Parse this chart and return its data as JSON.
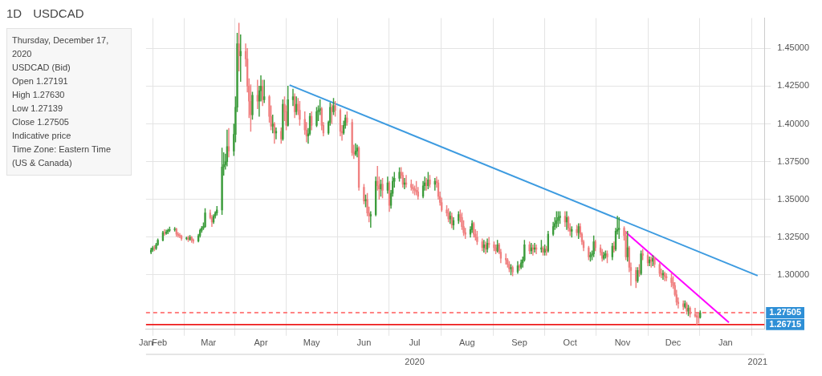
{
  "chart_data": {
    "type": "candlestick",
    "title": "USDCAD",
    "subtitle": "1D",
    "annotations": [
      "Thursday, December 17, 2020",
      "USDCAD (Bid)",
      "Open 1.27191",
      "High 1.27630",
      "Low 1.27139",
      "Close 1.27505",
      "Indicative price",
      "Time Zone: Eastern Time (US & Canada)"
    ],
    "xlim": [
      "2020-01-24",
      "2021-01-24"
    ],
    "xticks": [
      {
        "value": "2020-01-24",
        "label": "Jan"
      },
      {
        "value": "2020-02-01",
        "label": "Feb"
      },
      {
        "value": "2020-03-01",
        "label": "Mar"
      },
      {
        "value": "2020-04-01",
        "label": "Apr"
      },
      {
        "value": "2020-05-01",
        "label": "May"
      },
      {
        "value": "2020-06-01",
        "label": "Jun"
      },
      {
        "value": "2020-07-01",
        "label": "Jul"
      },
      {
        "value": "2020-08-01",
        "label": "Aug"
      },
      {
        "value": "2020-09-01",
        "label": "Sep"
      },
      {
        "value": "2020-10-01",
        "label": "Oct"
      },
      {
        "value": "2020-11-01",
        "label": "Nov"
      },
      {
        "value": "2020-12-01",
        "label": "Dec"
      },
      {
        "value": "2021-01-01",
        "label": "Jan"
      }
    ],
    "x2lim": [
      "2020-01-24",
      "2021-01-24"
    ],
    "x2ticks": [
      {
        "value": "2020-07-01",
        "label": "2020"
      },
      {
        "value": "2021-01-20",
        "label": "2021"
      }
    ],
    "ylim": [
      1.264,
      1.47
    ],
    "yticks": [
      {
        "value": 1.3,
        "label": "1.30000"
      },
      {
        "value": 1.325,
        "label": "1.32500"
      },
      {
        "value": 1.35,
        "label": "1.35000"
      },
      {
        "value": 1.375,
        "label": "1.37500"
      },
      {
        "value": 1.4,
        "label": "1.40000"
      },
      {
        "value": 1.425,
        "label": "1.42500"
      },
      {
        "value": 1.45,
        "label": "1.45000"
      }
    ],
    "grid": true,
    "ref_lines": [
      {
        "axis": "y",
        "value": 1.27505,
        "label": "1.27505",
        "color": "#ff5a5a",
        "line_style": "dashed"
      },
      {
        "axis": "y",
        "value": 1.26715,
        "label": "1.26715",
        "color": "#ee1c1c",
        "line_style": "solid"
      }
    ],
    "series": [
      {
        "x": [
          "2020-01-27",
          "2020-01-28",
          "2020-01-29",
          "2020-01-30",
          "2020-01-31",
          "2020-02-03",
          "2020-02-04",
          "2020-02-05",
          "2020-02-06",
          "2020-02-07",
          "2020-02-10",
          "2020-02-11",
          "2020-02-12",
          "2020-02-13",
          "2020-02-14",
          "2020-02-17",
          "2020-02-18",
          "2020-02-19",
          "2020-02-20",
          "2020-02-21",
          "2020-02-24",
          "2020-02-25",
          "2020-02-26",
          "2020-02-27",
          "2020-02-28",
          "2020-03-02",
          "2020-03-03",
          "2020-03-04",
          "2020-03-05",
          "2020-03-06",
          "2020-03-09",
          "2020-03-10",
          "2020-03-11",
          "2020-03-12",
          "2020-03-13",
          "2020-03-16",
          "2020-03-17",
          "2020-03-18",
          "2020-03-19",
          "2020-03-20",
          "2020-03-23",
          "2020-03-24",
          "2020-03-25",
          "2020-03-26",
          "2020-03-27",
          "2020-03-30",
          "2020-03-31",
          "2020-04-01",
          "2020-04-02",
          "2020-04-03",
          "2020-04-06",
          "2020-04-07",
          "2020-04-08",
          "2020-04-09",
          "2020-04-10",
          "2020-04-13",
          "2020-04-14",
          "2020-04-15",
          "2020-04-16",
          "2020-04-17",
          "2020-04-20",
          "2020-04-21",
          "2020-04-22",
          "2020-04-23",
          "2020-04-24",
          "2020-04-27",
          "2020-04-28",
          "2020-04-29",
          "2020-04-30",
          "2020-05-01",
          "2020-05-04",
          "2020-05-05",
          "2020-05-06",
          "2020-05-07",
          "2020-05-08",
          "2020-05-11",
          "2020-05-12",
          "2020-05-13",
          "2020-05-14",
          "2020-05-15",
          "2020-05-18",
          "2020-05-19",
          "2020-05-20",
          "2020-05-21",
          "2020-05-22",
          "2020-05-25",
          "2020-05-26",
          "2020-05-27",
          "2020-05-28",
          "2020-05-29",
          "2020-06-01",
          "2020-06-02",
          "2020-06-03",
          "2020-06-04",
          "2020-06-05",
          "2020-06-08",
          "2020-06-09",
          "2020-06-10",
          "2020-06-11",
          "2020-06-12",
          "2020-06-15",
          "2020-06-16",
          "2020-06-17",
          "2020-06-18",
          "2020-06-19",
          "2020-06-22",
          "2020-06-23",
          "2020-06-24",
          "2020-06-25",
          "2020-06-26",
          "2020-06-29",
          "2020-06-30",
          "2020-07-01",
          "2020-07-02",
          "2020-07-03",
          "2020-07-06",
          "2020-07-07",
          "2020-07-08",
          "2020-07-09",
          "2020-07-10",
          "2020-07-13",
          "2020-07-14",
          "2020-07-15",
          "2020-07-16",
          "2020-07-17",
          "2020-07-20",
          "2020-07-21",
          "2020-07-22",
          "2020-07-23",
          "2020-07-24",
          "2020-07-27",
          "2020-07-28",
          "2020-07-29",
          "2020-07-30",
          "2020-07-31",
          "2020-08-03",
          "2020-08-04",
          "2020-08-05",
          "2020-08-06",
          "2020-08-07",
          "2020-08-10",
          "2020-08-11",
          "2020-08-12",
          "2020-08-13",
          "2020-08-14",
          "2020-08-17",
          "2020-08-18",
          "2020-08-19",
          "2020-08-20",
          "2020-08-21",
          "2020-08-24",
          "2020-08-25",
          "2020-08-26",
          "2020-08-27",
          "2020-08-28",
          "2020-08-31",
          "2020-09-01",
          "2020-09-02",
          "2020-09-03",
          "2020-09-04",
          "2020-09-07",
          "2020-09-08",
          "2020-09-09",
          "2020-09-10",
          "2020-09-11",
          "2020-09-14",
          "2020-09-15",
          "2020-09-16",
          "2020-09-17",
          "2020-09-18",
          "2020-09-21",
          "2020-09-22",
          "2020-09-23",
          "2020-09-24",
          "2020-09-25",
          "2020-09-28",
          "2020-09-29",
          "2020-09-30",
          "2020-10-01",
          "2020-10-02",
          "2020-10-05",
          "2020-10-06",
          "2020-10-07",
          "2020-10-08",
          "2020-10-09",
          "2020-10-12",
          "2020-10-13",
          "2020-10-14",
          "2020-10-15",
          "2020-10-16",
          "2020-10-19",
          "2020-10-20",
          "2020-10-21",
          "2020-10-22",
          "2020-10-23",
          "2020-10-26",
          "2020-10-27",
          "2020-10-28",
          "2020-10-29",
          "2020-10-30",
          "2020-11-02",
          "2020-11-03",
          "2020-11-04",
          "2020-11-05",
          "2020-11-06",
          "2020-11-09",
          "2020-11-10",
          "2020-11-11",
          "2020-11-12",
          "2020-11-13",
          "2020-11-16",
          "2020-11-17",
          "2020-11-18",
          "2020-11-19",
          "2020-11-20",
          "2020-11-23",
          "2020-11-24",
          "2020-11-25",
          "2020-11-26",
          "2020-11-27",
          "2020-11-30",
          "2020-12-01",
          "2020-12-02",
          "2020-12-03",
          "2020-12-04",
          "2020-12-07",
          "2020-12-08",
          "2020-12-09",
          "2020-12-10",
          "2020-12-11",
          "2020-12-14",
          "2020-12-15",
          "2020-12-16",
          "2020-12-17"
        ],
        "ohlc": [
          [
            1.315,
            1.3178,
            1.314,
            1.3165
          ],
          [
            1.3165,
            1.319,
            1.3155,
            1.318
          ],
          [
            1.318,
            1.3195,
            1.316,
            1.3175
          ],
          [
            1.3175,
            1.321,
            1.3168,
            1.32
          ],
          [
            1.32,
            1.324,
            1.3195,
            1.323
          ],
          [
            1.323,
            1.329,
            1.3225,
            1.328
          ],
          [
            1.328,
            1.33,
            1.3262,
            1.3275
          ],
          [
            1.3275,
            1.3298,
            1.3268,
            1.3285
          ],
          [
            1.3285,
            1.3305,
            1.3272,
            1.3295
          ],
          [
            1.3295,
            1.3318,
            1.3285,
            1.33
          ],
          [
            1.33,
            1.3315,
            1.329,
            1.3305
          ],
          [
            1.3305,
            1.331,
            1.3255,
            1.327
          ],
          [
            1.327,
            1.3282,
            1.325,
            1.3262
          ],
          [
            1.3262,
            1.3275,
            1.3245,
            1.3258
          ],
          [
            1.3258,
            1.3265,
            1.3228,
            1.324
          ],
          [
            1.324,
            1.3252,
            1.3232,
            1.3245
          ],
          [
            1.3245,
            1.3258,
            1.322,
            1.3235
          ],
          [
            1.3235,
            1.3262,
            1.3228,
            1.325
          ],
          [
            1.325,
            1.3255,
            1.3215,
            1.323
          ],
          [
            1.323,
            1.324,
            1.321,
            1.3225
          ],
          [
            1.3225,
            1.327,
            1.3218,
            1.326
          ],
          [
            1.326,
            1.3305,
            1.325,
            1.3295
          ],
          [
            1.3295,
            1.3322,
            1.3282,
            1.331
          ],
          [
            1.331,
            1.3345,
            1.33,
            1.332
          ],
          [
            1.332,
            1.344,
            1.3315,
            1.341
          ],
          [
            1.341,
            1.343,
            1.337,
            1.338
          ],
          [
            1.338,
            1.3395,
            1.332,
            1.335
          ],
          [
            1.335,
            1.34,
            1.334,
            1.339
          ],
          [
            1.339,
            1.342,
            1.3375,
            1.341
          ],
          [
            1.341,
            1.3455,
            1.3395,
            1.343
          ],
          [
            1.343,
            1.384,
            1.34,
            1.3715
          ],
          [
            1.3715,
            1.381,
            1.366,
            1.373
          ],
          [
            1.373,
            1.38,
            1.37,
            1.375
          ],
          [
            1.375,
            1.396,
            1.372,
            1.385
          ],
          [
            1.385,
            1.397,
            1.378,
            1.382
          ],
          [
            1.382,
            1.4,
            1.379,
            1.393
          ],
          [
            1.393,
            1.418,
            1.388,
            1.411
          ],
          [
            1.411,
            1.46,
            1.408,
            1.453
          ],
          [
            1.453,
            1.4667,
            1.435,
            1.445
          ],
          [
            1.445,
            1.459,
            1.428,
            1.448
          ],
          [
            1.448,
            1.453,
            1.438,
            1.443
          ],
          [
            1.443,
            1.45,
            1.421,
            1.425
          ],
          [
            1.425,
            1.43,
            1.404,
            1.415
          ],
          [
            1.415,
            1.426,
            1.395,
            1.406
          ],
          [
            1.406,
            1.421,
            1.403,
            1.419
          ],
          [
            1.419,
            1.429,
            1.41,
            1.415
          ],
          [
            1.415,
            1.425,
            1.405,
            1.422
          ],
          [
            1.422,
            1.432,
            1.415,
            1.425
          ],
          [
            1.425,
            1.429,
            1.412,
            1.416
          ],
          [
            1.416,
            1.429,
            1.414,
            1.418
          ],
          [
            1.418,
            1.419,
            1.401,
            1.405
          ],
          [
            1.405,
            1.412,
            1.396,
            1.3985
          ],
          [
            1.3985,
            1.406,
            1.394,
            1.4
          ],
          [
            1.4,
            1.401,
            1.387,
            1.394
          ],
          [
            1.394,
            1.3975,
            1.39,
            1.395
          ],
          [
            1.395,
            1.3975,
            1.387,
            1.39
          ],
          [
            1.39,
            1.416,
            1.389,
            1.413
          ],
          [
            1.413,
            1.418,
            1.402,
            1.408
          ],
          [
            1.408,
            1.412,
            1.396,
            1.399
          ],
          [
            1.399,
            1.425,
            1.3985,
            1.416
          ],
          [
            1.416,
            1.423,
            1.412,
            1.418
          ],
          [
            1.418,
            1.42,
            1.404,
            1.408
          ],
          [
            1.408,
            1.418,
            1.406,
            1.413
          ],
          [
            1.413,
            1.417,
            1.406,
            1.409
          ],
          [
            1.409,
            1.415,
            1.399,
            1.403
          ],
          [
            1.403,
            1.408,
            1.393,
            1.396
          ],
          [
            1.396,
            1.401,
            1.388,
            1.392
          ],
          [
            1.392,
            1.397,
            1.387,
            1.3935
          ],
          [
            1.3935,
            1.407,
            1.3925,
            1.405
          ],
          [
            1.405,
            1.408,
            1.396,
            1.399
          ],
          [
            1.399,
            1.411,
            1.398,
            1.408
          ],
          [
            1.408,
            1.412,
            1.402,
            1.409
          ],
          [
            1.409,
            1.416,
            1.406,
            1.41
          ],
          [
            1.41,
            1.411,
            1.396,
            1.399
          ],
          [
            1.399,
            1.401,
            1.392,
            1.394
          ],
          [
            1.394,
            1.402,
            1.393,
            1.401
          ],
          [
            1.401,
            1.414,
            1.399,
            1.411
          ],
          [
            1.411,
            1.413,
            1.4,
            1.408
          ],
          [
            1.408,
            1.417,
            1.406,
            1.412
          ],
          [
            1.412,
            1.415,
            1.405,
            1.409
          ],
          [
            1.409,
            1.41,
            1.392,
            1.395
          ],
          [
            1.395,
            1.399,
            1.389,
            1.394
          ],
          [
            1.394,
            1.402,
            1.393,
            1.399
          ],
          [
            1.399,
            1.406,
            1.397,
            1.404
          ],
          [
            1.404,
            1.408,
            1.399,
            1.401
          ],
          [
            1.401,
            1.403,
            1.379,
            1.381
          ],
          [
            1.381,
            1.386,
            1.377,
            1.38
          ],
          [
            1.38,
            1.387,
            1.379,
            1.382
          ],
          [
            1.382,
            1.386,
            1.378,
            1.384
          ],
          [
            1.384,
            1.385,
            1.356,
            1.358
          ],
          [
            1.358,
            1.36,
            1.347,
            1.349
          ],
          [
            1.349,
            1.353,
            1.345,
            1.35
          ],
          [
            1.35,
            1.354,
            1.339,
            1.341
          ],
          [
            1.341,
            1.345,
            1.335,
            1.339
          ],
          [
            1.339,
            1.342,
            1.3315,
            1.34
          ],
          [
            1.34,
            1.365,
            1.339,
            1.362
          ],
          [
            1.362,
            1.372,
            1.356,
            1.359
          ],
          [
            1.359,
            1.365,
            1.35,
            1.357
          ],
          [
            1.357,
            1.363,
            1.352,
            1.36
          ],
          [
            1.36,
            1.364,
            1.351,
            1.356
          ],
          [
            1.356,
            1.365,
            1.354,
            1.361
          ],
          [
            1.361,
            1.362,
            1.342,
            1.346
          ],
          [
            1.346,
            1.356,
            1.344,
            1.354
          ],
          [
            1.354,
            1.365,
            1.352,
            1.362
          ],
          [
            1.362,
            1.368,
            1.358,
            1.364
          ],
          [
            1.364,
            1.371,
            1.362,
            1.368
          ],
          [
            1.368,
            1.3712,
            1.364,
            1.366
          ],
          [
            1.366,
            1.368,
            1.358,
            1.36
          ],
          [
            1.36,
            1.364,
            1.357,
            1.361
          ],
          [
            1.361,
            1.366,
            1.358,
            1.36
          ],
          [
            1.36,
            1.363,
            1.356,
            1.358
          ],
          [
            1.358,
            1.36,
            1.354,
            1.357
          ],
          [
            1.357,
            1.359,
            1.353,
            1.356
          ],
          [
            1.356,
            1.362,
            1.353,
            1.355
          ],
          [
            1.355,
            1.358,
            1.35,
            1.352
          ],
          [
            1.352,
            1.362,
            1.351,
            1.359
          ],
          [
            1.359,
            1.365,
            1.356,
            1.361
          ],
          [
            1.361,
            1.364,
            1.356,
            1.359
          ],
          [
            1.359,
            1.368,
            1.357,
            1.363
          ],
          [
            1.363,
            1.366,
            1.358,
            1.36
          ],
          [
            1.36,
            1.364,
            1.356,
            1.362
          ],
          [
            1.362,
            1.365,
            1.358,
            1.361
          ],
          [
            1.361,
            1.363,
            1.35,
            1.352
          ],
          [
            1.352,
            1.355,
            1.346,
            1.348
          ],
          [
            1.348,
            1.351,
            1.342,
            1.343
          ],
          [
            1.343,
            1.346,
            1.339,
            1.341
          ],
          [
            1.341,
            1.344,
            1.335,
            1.337
          ],
          [
            1.337,
            1.342,
            1.334,
            1.339
          ],
          [
            1.339,
            1.341,
            1.331,
            1.333
          ],
          [
            1.333,
            1.338,
            1.33,
            1.336
          ],
          [
            1.336,
            1.342,
            1.334,
            1.34
          ],
          [
            1.34,
            1.343,
            1.335,
            1.338
          ],
          [
            1.338,
            1.341,
            1.33,
            1.332
          ],
          [
            1.332,
            1.336,
            1.326,
            1.328
          ],
          [
            1.328,
            1.331,
            1.324,
            1.327
          ],
          [
            1.327,
            1.332,
            1.325,
            1.33
          ],
          [
            1.33,
            1.336,
            1.328,
            1.334
          ],
          [
            1.334,
            1.335,
            1.325,
            1.327
          ],
          [
            1.327,
            1.33,
            1.323,
            1.325
          ],
          [
            1.325,
            1.329,
            1.32,
            1.322
          ],
          [
            1.322,
            1.324,
            1.316,
            1.318
          ],
          [
            1.318,
            1.323,
            1.315,
            1.32
          ],
          [
            1.32,
            1.322,
            1.314,
            1.317
          ],
          [
            1.317,
            1.324,
            1.315,
            1.321
          ],
          [
            1.321,
            1.325,
            1.318,
            1.32
          ],
          [
            1.32,
            1.322,
            1.316,
            1.318
          ],
          [
            1.318,
            1.32,
            1.314,
            1.316
          ],
          [
            1.316,
            1.323,
            1.315,
            1.32
          ],
          [
            1.32,
            1.321,
            1.314,
            1.315
          ],
          [
            1.315,
            1.317,
            1.308,
            1.311
          ],
          [
            1.311,
            1.314,
            1.307,
            1.31
          ],
          [
            1.31,
            1.311,
            1.305,
            1.307
          ],
          [
            1.307,
            1.309,
            1.302,
            1.304
          ],
          [
            1.304,
            1.307,
            1.3,
            1.305
          ],
          [
            1.305,
            1.306,
            1.2993,
            1.302
          ],
          [
            1.302,
            1.309,
            1.301,
            1.306
          ],
          [
            1.306,
            1.307,
            1.303,
            1.305
          ],
          [
            1.305,
            1.31,
            1.304,
            1.308
          ],
          [
            1.308,
            1.312,
            1.305,
            1.31
          ],
          [
            1.31,
            1.323,
            1.309,
            1.32
          ],
          [
            1.32,
            1.322,
            1.314,
            1.316
          ],
          [
            1.316,
            1.321,
            1.314,
            1.318
          ],
          [
            1.318,
            1.32,
            1.313,
            1.317
          ],
          [
            1.317,
            1.321,
            1.315,
            1.318
          ],
          [
            1.318,
            1.32,
            1.314,
            1.317
          ],
          [
            1.317,
            1.323,
            1.315,
            1.318
          ],
          [
            1.318,
            1.319,
            1.313,
            1.315
          ],
          [
            1.315,
            1.32,
            1.313,
            1.317
          ],
          [
            1.317,
            1.319,
            1.313,
            1.316
          ],
          [
            1.316,
            1.329,
            1.315,
            1.327
          ],
          [
            1.327,
            1.335,
            1.326,
            1.332
          ],
          [
            1.332,
            1.338,
            1.33,
            1.334
          ],
          [
            1.334,
            1.342,
            1.331,
            1.336
          ],
          [
            1.336,
            1.342,
            1.332,
            1.338
          ],
          [
            1.338,
            1.342,
            1.334,
            1.339
          ],
          [
            1.339,
            1.342,
            1.332,
            1.335
          ],
          [
            1.335,
            1.342,
            1.33,
            1.338
          ],
          [
            1.338,
            1.339,
            1.329,
            1.331
          ],
          [
            1.331,
            1.334,
            1.326,
            1.329
          ],
          [
            1.329,
            1.332,
            1.325,
            1.33
          ],
          [
            1.33,
            1.333,
            1.326,
            1.328
          ],
          [
            1.328,
            1.334,
            1.324,
            1.332
          ],
          [
            1.332,
            1.334,
            1.325,
            1.327
          ],
          [
            1.327,
            1.328,
            1.32,
            1.322
          ],
          [
            1.322,
            1.323,
            1.316,
            1.318
          ],
          [
            1.318,
            1.319,
            1.31,
            1.312
          ],
          [
            1.312,
            1.315,
            1.309,
            1.313
          ],
          [
            1.313,
            1.316,
            1.31,
            1.314
          ],
          [
            1.314,
            1.326,
            1.312,
            1.322
          ],
          [
            1.322,
            1.323,
            1.316,
            1.318
          ],
          [
            1.318,
            1.32,
            1.313,
            1.315
          ],
          [
            1.315,
            1.317,
            1.309,
            1.311
          ],
          [
            1.311,
            1.315,
            1.31,
            1.313
          ],
          [
            1.313,
            1.316,
            1.311,
            1.314
          ],
          [
            1.314,
            1.316,
            1.308,
            1.312
          ],
          [
            1.312,
            1.321,
            1.31,
            1.319
          ],
          [
            1.319,
            1.322,
            1.315,
            1.317
          ],
          [
            1.317,
            1.331,
            1.316,
            1.329
          ],
          [
            1.329,
            1.339,
            1.327,
            1.33
          ],
          [
            1.33,
            1.338,
            1.324,
            1.331
          ],
          [
            1.331,
            1.332,
            1.323,
            1.326
          ],
          [
            1.326,
            1.329,
            1.31,
            1.312
          ],
          [
            1.312,
            1.329,
            1.309,
            1.318
          ],
          [
            1.318,
            1.319,
            1.302,
            1.305
          ],
          [
            1.305,
            1.308,
            1.293,
            1.303
          ],
          [
            1.303,
            1.305,
            1.2915,
            1.296
          ],
          [
            1.296,
            1.305,
            1.295,
            1.303
          ],
          [
            1.303,
            1.307,
            1.299,
            1.301
          ],
          [
            1.301,
            1.316,
            1.3,
            1.314
          ],
          [
            1.314,
            1.317,
            1.31,
            1.313
          ],
          [
            1.313,
            1.315,
            1.306,
            1.308
          ],
          [
            1.308,
            1.312,
            1.306,
            1.31
          ],
          [
            1.31,
            1.312,
            1.305,
            1.309
          ],
          [
            1.309,
            1.313,
            1.306,
            1.311
          ],
          [
            1.311,
            1.312,
            1.305,
            1.307
          ],
          [
            1.307,
            1.308,
            1.299,
            1.301
          ],
          [
            1.301,
            1.304,
            1.298,
            1.3
          ],
          [
            1.3,
            1.303,
            1.297,
            1.301
          ],
          [
            1.301,
            1.302,
            1.296,
            1.299
          ],
          [
            1.299,
            1.301,
            1.296,
            1.298
          ],
          [
            1.298,
            1.301,
            1.292,
            1.295
          ],
          [
            1.295,
            1.299,
            1.291,
            1.293
          ],
          [
            1.293,
            1.295,
            1.286,
            1.287
          ],
          [
            1.287,
            1.29,
            1.28,
            1.282
          ],
          [
            1.282,
            1.285,
            1.278,
            1.281
          ],
          [
            1.281,
            1.283,
            1.277,
            1.279
          ],
          [
            1.279,
            1.283,
            1.278,
            1.281
          ],
          [
            1.281,
            1.282,
            1.274,
            1.276
          ],
          [
            1.276,
            1.28,
            1.273,
            1.278
          ],
          [
            1.278,
            1.279,
            1.272,
            1.274
          ],
          [
            1.274,
            1.278,
            1.272,
            1.273
          ],
          [
            1.273,
            1.275,
            1.26715,
            1.272
          ],
          [
            1.272,
            1.275,
            1.268,
            1.2719
          ],
          [
            1.27191,
            1.2763,
            1.27139,
            1.27505
          ]
        ],
        "colors": [
          "#3c9c3c",
          "#3c9c3c",
          "#f08080",
          "#3c9c3c",
          "#3c9c3c",
          "#3c9c3c",
          "#f08080",
          "#3c9c3c",
          "#3c9c3c",
          "#3c9c3c",
          "#3c9c3c",
          "#f08080",
          "#f08080",
          "#f08080",
          "#f08080",
          "#3c9c3c",
          "#f08080",
          "#3c9c3c",
          "#f08080",
          "#f08080",
          "#3c9c3c",
          "#3c9c3c",
          "#3c9c3c",
          "#3c9c3c",
          "#3c9c3c",
          "#f08080",
          "#f08080",
          "#3c9c3c",
          "#3c9c3c",
          "#3c9c3c",
          "#3c9c3c",
          "#3c9c3c",
          "#3c9c3c",
          "#3c9c3c",
          "#f08080",
          "#3c9c3c",
          "#3c9c3c",
          "#3c9c3c",
          "#f08080",
          "#3c9c3c",
          "#f08080",
          "#f08080",
          "#f08080",
          "#f08080",
          "#3c9c3c",
          "#f08080",
          "#3c9c3c",
          "#3c9c3c",
          "#f08080",
          "#3c9c3c",
          "#f08080",
          "#f08080",
          "#3c9c3c",
          "#f08080",
          "#3c9c3c",
          "#f08080",
          "#3c9c3c",
          "#f08080",
          "#f08080",
          "#3c9c3c",
          "#3c9c3c",
          "#f08080",
          "#3c9c3c",
          "#f08080",
          "#f08080",
          "#f08080",
          "#f08080",
          "#3c9c3c",
          "#3c9c3c",
          "#f08080",
          "#3c9c3c",
          "#3c9c3c",
          "#3c9c3c",
          "#f08080",
          "#f08080",
          "#3c9c3c",
          "#3c9c3c",
          "#f08080",
          "#3c9c3c",
          "#f08080",
          "#f08080",
          "#f08080",
          "#3c9c3c",
          "#3c9c3c",
          "#f08080",
          "#f08080",
          "#f08080",
          "#3c9c3c",
          "#3c9c3c",
          "#f08080",
          "#f08080",
          "#3c9c3c",
          "#f08080",
          "#f08080",
          "#3c9c3c",
          "#3c9c3c",
          "#f08080",
          "#f08080",
          "#3c9c3c",
          "#f08080",
          "#3c9c3c",
          "#f08080",
          "#3c9c3c",
          "#3c9c3c",
          "#3c9c3c",
          "#3c9c3c",
          "#f08080",
          "#f08080",
          "#3c9c3c",
          "#f08080",
          "#f08080",
          "#f08080",
          "#f08080",
          "#f08080",
          "#f08080",
          "#3c9c3c",
          "#3c9c3c",
          "#f08080",
          "#3c9c3c",
          "#f08080",
          "#3c9c3c",
          "#f08080",
          "#f08080",
          "#f08080",
          "#f08080",
          "#f08080",
          "#f08080",
          "#3c9c3c",
          "#f08080",
          "#3c9c3c",
          "#3c9c3c",
          "#f08080",
          "#f08080",
          "#f08080",
          "#f08080",
          "#3c9c3c",
          "#3c9c3c",
          "#f08080",
          "#f08080",
          "#f08080",
          "#f08080",
          "#3c9c3c",
          "#f08080",
          "#3c9c3c",
          "#f08080",
          "#f08080",
          "#f08080",
          "#3c9c3c",
          "#f08080",
          "#f08080",
          "#f08080",
          "#f08080",
          "#f08080",
          "#3c9c3c",
          "#f08080",
          "#3c9c3c",
          "#f08080",
          "#3c9c3c",
          "#3c9c3c",
          "#3c9c3c",
          "#f08080",
          "#3c9c3c",
          "#f08080",
          "#3c9c3c",
          "#f08080",
          "#3c9c3c",
          "#f08080",
          "#3c9c3c",
          "#f08080",
          "#3c9c3c",
          "#3c9c3c",
          "#3c9c3c",
          "#3c9c3c",
          "#3c9c3c",
          "#3c9c3c",
          "#f08080",
          "#3c9c3c",
          "#f08080",
          "#f08080",
          "#3c9c3c",
          "#f08080",
          "#3c9c3c",
          "#f08080",
          "#f08080",
          "#f08080",
          "#f08080",
          "#3c9c3c",
          "#3c9c3c",
          "#3c9c3c",
          "#f08080",
          "#f08080",
          "#f08080",
          "#3c9c3c",
          "#3c9c3c",
          "#f08080",
          "#3c9c3c",
          "#f08080",
          "#3c9c3c",
          "#3c9c3c",
          "#3c9c3c",
          "#f08080",
          "#f08080",
          "#3c9c3c",
          "#f08080",
          "#f08080",
          "#f08080",
          "#3c9c3c",
          "#f08080",
          "#3c9c3c",
          "#f08080",
          "#f08080",
          "#3c9c3c",
          "#f08080",
          "#3c9c3c",
          "#f08080",
          "#f08080",
          "#f08080",
          "#3c9c3c",
          "#f08080",
          "#f08080",
          "#f08080",
          "#f08080",
          "#f08080",
          "#f08080",
          "#f08080",
          "#f08080",
          "#3c9c3c",
          "#f08080",
          "#3c9c3c",
          "#f08080",
          "#f08080",
          "#f08080",
          "#f08080",
          "#3c9c3c"
        ]
      },
      {
        "type": "line",
        "color": "#3d9be0",
        "x": [
          "2020-04-18",
          "2021-01-20"
        ],
        "values": [
          1.4257,
          1.2995
        ]
      },
      {
        "type": "line",
        "color": "#ff00ff",
        "x": [
          "2020-11-03",
          "2021-01-03"
        ],
        "values": [
          1.3282,
          1.2686
        ]
      }
    ]
  }
}
